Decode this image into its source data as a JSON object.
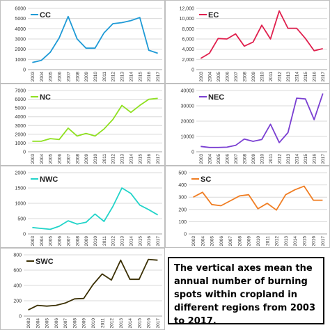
{
  "chart_data": [
    {
      "type": "line",
      "x": [
        "2003",
        "2004",
        "2005",
        "2006",
        "2007",
        "2008",
        "2009",
        "2010",
        "2011",
        "2012",
        "2013",
        "2014",
        "2015",
        "2016",
        "2017"
      ],
      "series": [
        {
          "name": "CC",
          "color": "#1f9ad6",
          "values": [
            700,
            900,
            1700,
            3100,
            5200,
            3000,
            2100,
            2100,
            3600,
            4500,
            4600,
            4800,
            5100,
            1900,
            1600
          ]
        }
      ],
      "ylim": [
        0,
        6000
      ],
      "yticks": [
        0,
        1000,
        2000,
        3000,
        4000,
        5000,
        6000
      ],
      "ytick_labels": [
        "0",
        "1000",
        "2000",
        "3000",
        "4000",
        "5000",
        "6000"
      ],
      "grid": true,
      "legend": "top-left"
    },
    {
      "type": "line",
      "x": [
        "2003",
        "2004",
        "2005",
        "2006",
        "2007",
        "2008",
        "2009",
        "2010",
        "2011",
        "2012",
        "2013",
        "2014",
        "2015",
        "2016",
        "2017"
      ],
      "series": [
        {
          "name": "EC",
          "color": "#e0204e",
          "values": [
            2200,
            3200,
            6100,
            6000,
            7000,
            4600,
            5400,
            8700,
            6000,
            11500,
            8100,
            8100,
            6100,
            3700,
            4100
          ]
        }
      ],
      "ylim": [
        0,
        12000
      ],
      "yticks": [
        0,
        2000,
        4000,
        6000,
        8000,
        10000,
        12000
      ],
      "ytick_labels": [
        "0",
        "2,000",
        "4,000",
        "6,000",
        "8,000",
        "10,000",
        "12,000"
      ],
      "grid": true,
      "legend": "top-left"
    },
    {
      "type": "line",
      "x": [
        "2003",
        "2004",
        "2005",
        "2006",
        "2007",
        "2008",
        "2009",
        "2010",
        "2011",
        "2012",
        "2013",
        "2014",
        "2015",
        "2016",
        "2017"
      ],
      "series": [
        {
          "name": "NC",
          "color": "#8fe020",
          "values": [
            1200,
            1200,
            1500,
            1400,
            2700,
            1800,
            2100,
            1800,
            2600,
            3700,
            5300,
            4500,
            5300,
            6000,
            6100
          ]
        }
      ],
      "ylim": [
        0,
        7000
      ],
      "yticks": [
        0,
        1000,
        2000,
        3000,
        4000,
        5000,
        6000,
        7000
      ],
      "ytick_labels": [
        "0",
        "1000",
        "2000",
        "3000",
        "4000",
        "5000",
        "6000",
        "7000"
      ],
      "grid": true,
      "legend": "top-left"
    },
    {
      "type": "line",
      "x": [
        "2003",
        "2004",
        "2005",
        "2006",
        "2007",
        "2008",
        "2009",
        "2010",
        "2011",
        "2012",
        "2013",
        "2014",
        "2015",
        "2016",
        "2017"
      ],
      "series": [
        {
          "name": "NEC",
          "color": "#7a3fd2",
          "values": [
            3500,
            2800,
            2800,
            3000,
            4200,
            8300,
            6800,
            8000,
            18000,
            6000,
            12500,
            35000,
            34500,
            21000,
            38000
          ]
        }
      ],
      "ylim": [
        0,
        40000
      ],
      "yticks": [
        0,
        10000,
        20000,
        30000,
        40000
      ],
      "ytick_labels": [
        "0",
        "10000",
        "20000",
        "30000",
        "40000"
      ],
      "grid": true,
      "legend": "top-left"
    },
    {
      "type": "line",
      "x": [
        "2003",
        "2004",
        "2005",
        "2006",
        "2007",
        "2008",
        "2009",
        "2010",
        "2011",
        "2012",
        "2013",
        "2014",
        "2015",
        "2016",
        "2017"
      ],
      "series": [
        {
          "name": "NWC",
          "color": "#22d4c9",
          "values": [
            210,
            180,
            150,
            250,
            430,
            320,
            380,
            650,
            410,
            900,
            1500,
            1320,
            940,
            790,
            620
          ]
        }
      ],
      "ylim": [
        0,
        2000
      ],
      "yticks": [
        0,
        500,
        1000,
        1500,
        2000
      ],
      "ytick_labels": [
        "0",
        "500",
        "1000",
        "1500",
        "2000"
      ],
      "grid": true,
      "legend": "top-left"
    },
    {
      "type": "line",
      "x": [
        "2003",
        "2004",
        "2005",
        "2006",
        "2007",
        "2008",
        "2009",
        "2010",
        "2011",
        "2012",
        "2013",
        "2014",
        "2015",
        "2016",
        "2017"
      ],
      "series": [
        {
          "name": "SC",
          "color": "#f07d22",
          "values": [
            300,
            340,
            240,
            230,
            270,
            310,
            320,
            205,
            250,
            195,
            320,
            360,
            390,
            275,
            275
          ]
        }
      ],
      "ylim": [
        0,
        500
      ],
      "yticks": [
        0,
        100,
        200,
        300,
        400,
        500
      ],
      "ytick_labels": [
        "0",
        "100",
        "200",
        "300",
        "400",
        "500"
      ],
      "grid": true,
      "legend": "top-left"
    },
    {
      "type": "line",
      "x": [
        "2003",
        "2004",
        "2005",
        "2006",
        "2007",
        "2008",
        "2009",
        "2010",
        "2011",
        "2012",
        "2013",
        "2014",
        "2015",
        "2016",
        "2017"
      ],
      "series": [
        {
          "name": "SWC",
          "color": "#3b3005",
          "values": [
            80,
            140,
            130,
            140,
            170,
            225,
            230,
            410,
            550,
            470,
            730,
            480,
            480,
            740,
            730
          ]
        }
      ],
      "ylim": [
        0,
        800
      ],
      "yticks": [
        0,
        200,
        400,
        600,
        800
      ],
      "ytick_labels": [
        "0",
        "200",
        "400",
        "600",
        "800"
      ],
      "grid": true,
      "legend": "top-left"
    }
  ],
  "note": {
    "text": "The vertical axes mean the annual number of burning spots within cropland in different regions from 2003 to 2017."
  }
}
